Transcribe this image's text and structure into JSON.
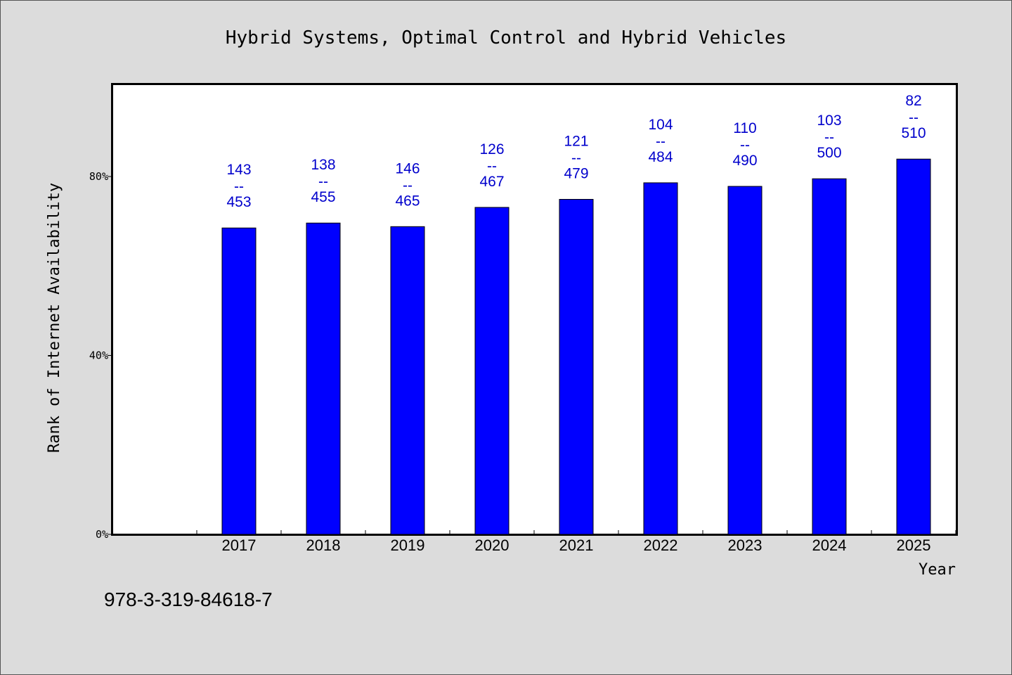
{
  "chart_data": {
    "type": "bar",
    "title": "Hybrid Systems, Optimal Control and Hybrid Vehicles",
    "xlabel": "Year",
    "ylabel": "Rank of Internet Availability",
    "categories": [
      "2017",
      "2018",
      "2019",
      "2020",
      "2021",
      "2022",
      "2023",
      "2024",
      "2025"
    ],
    "series": [
      {
        "values": [
          68.5,
          69.6,
          68.8,
          73.1,
          74.9,
          78.6,
          77.8,
          79.5,
          83.9
        ]
      }
    ],
    "data_labels": [
      {
        "top": "143",
        "sep": "--",
        "bottom": "453"
      },
      {
        "top": "138",
        "sep": "--",
        "bottom": "455"
      },
      {
        "top": "146",
        "sep": "--",
        "bottom": "465"
      },
      {
        "top": "126",
        "sep": "--",
        "bottom": "467"
      },
      {
        "top": "121",
        "sep": "--",
        "bottom": "479"
      },
      {
        "top": "104",
        "sep": "--",
        "bottom": "484"
      },
      {
        "top": "110",
        "sep": "--",
        "bottom": "490"
      },
      {
        "top": "103",
        "sep": "--",
        "bottom": "500"
      },
      {
        "top": "82",
        "sep": "--",
        "bottom": "510"
      }
    ],
    "yticks": [
      {
        "value": 0,
        "label": "0%"
      },
      {
        "value": 40,
        "label": "40%"
      },
      {
        "value": 80,
        "label": "80%"
      }
    ],
    "ylim": [
      0,
      100.6
    ],
    "grid": false,
    "bar_color": "#0000ff",
    "label_color": "#0000cc",
    "plot_background": "#ffffff",
    "page_background": "#dcdcdc"
  },
  "footer": {
    "isbn": "978-3-319-84618-7"
  }
}
